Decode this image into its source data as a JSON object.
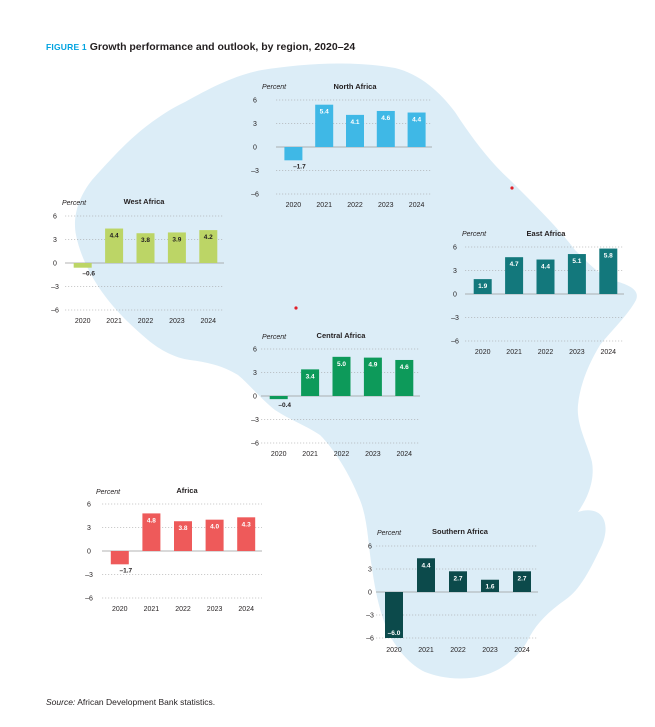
{
  "figure": {
    "tag": "FIGURE 1",
    "title": "Growth performance and outlook, by region, 2020–24"
  },
  "source": {
    "label": "Source:",
    "text": " African Development Bank statistics."
  },
  "map": {
    "fill": "#dcedf7",
    "marker_color": "#e0202a"
  },
  "chart_data": [
    {
      "type": "bar",
      "title": "North Africa",
      "ylabel": "Percent",
      "categories": [
        "2020",
        "2021",
        "2022",
        "2023",
        "2024"
      ],
      "values": [
        -1.7,
        5.4,
        4.1,
        4.6,
        4.4
      ],
      "labels": [
        "–1.7",
        "5.4",
        "4.1",
        "4.6",
        "4.4"
      ],
      "yticks": [
        "6",
        "3",
        "0",
        "–3",
        "–6"
      ],
      "ylim": [
        -6,
        6
      ],
      "color": "#3fb8e6"
    },
    {
      "type": "bar",
      "title": "West Africa",
      "ylabel": "Percent",
      "categories": [
        "2020",
        "2021",
        "2022",
        "2023",
        "2024"
      ],
      "values": [
        -0.6,
        4.4,
        3.8,
        3.9,
        4.2
      ],
      "labels": [
        "–0.6",
        "4.4",
        "3.8",
        "3.9",
        "4.2"
      ],
      "yticks": [
        "6",
        "3",
        "0",
        "–3",
        "–6"
      ],
      "ylim": [
        -6,
        6
      ],
      "color": "#bcd566"
    },
    {
      "type": "bar",
      "title": "East Africa",
      "ylabel": "Percent",
      "categories": [
        "2020",
        "2021",
        "2022",
        "2023",
        "2024"
      ],
      "values": [
        1.9,
        4.7,
        4.4,
        5.1,
        5.8
      ],
      "labels": [
        "1.9",
        "4.7",
        "4.4",
        "5.1",
        "5.8"
      ],
      "yticks": [
        "6",
        "3",
        "0",
        "–3",
        "–6"
      ],
      "ylim": [
        -6,
        6
      ],
      "color": "#13787c"
    },
    {
      "type": "bar",
      "title": "Central Africa",
      "ylabel": "Percent",
      "categories": [
        "2020",
        "2021",
        "2022",
        "2023",
        "2024"
      ],
      "values": [
        -0.4,
        3.4,
        5.0,
        4.9,
        4.6
      ],
      "labels": [
        "–0.4",
        "3.4",
        "5.0",
        "4.9",
        "4.6"
      ],
      "yticks": [
        "6",
        "3",
        "0",
        "–3",
        "–6"
      ],
      "ylim": [
        -6,
        6
      ],
      "color": "#0d9a5a"
    },
    {
      "type": "bar",
      "title": "Africa",
      "ylabel": "Percent",
      "categories": [
        "2020",
        "2021",
        "2022",
        "2023",
        "2024"
      ],
      "values": [
        -1.7,
        4.8,
        3.8,
        4.0,
        4.3
      ],
      "labels": [
        "–1.7",
        "4.8",
        "3.8",
        "4.0",
        "4.3"
      ],
      "yticks": [
        "6",
        "3",
        "0",
        "–3",
        "–6"
      ],
      "ylim": [
        -6,
        6
      ],
      "color": "#ee5a5a"
    },
    {
      "type": "bar",
      "title": "Southern Africa",
      "ylabel": "Percent",
      "categories": [
        "2020",
        "2021",
        "2022",
        "2023",
        "2024"
      ],
      "values": [
        -6.0,
        4.4,
        2.7,
        1.6,
        2.7
      ],
      "labels": [
        "–6.0",
        "4.4",
        "2.7",
        "1.6",
        "2.7"
      ],
      "yticks": [
        "6",
        "3",
        "0",
        "–3",
        "–6"
      ],
      "ylim": [
        -6,
        6
      ],
      "color": "#0c4a4b"
    }
  ]
}
